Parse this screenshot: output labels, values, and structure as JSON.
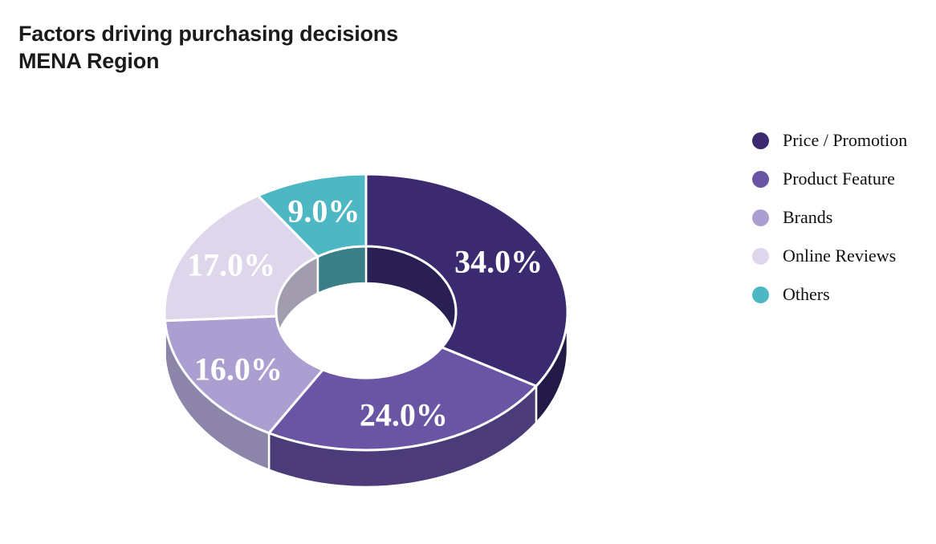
{
  "title": {
    "line1": "Factors driving purchasing decisions",
    "line2": "MENA Region"
  },
  "legend": {
    "items": [
      {
        "label": "Price / Promotion",
        "color": "#3B2A70"
      },
      {
        "label": "Product Feature",
        "color": "#6A54A4"
      },
      {
        "label": "Brands",
        "color": "#AB9FD2"
      },
      {
        "label": "Online Reviews",
        "color": "#DED7EC"
      },
      {
        "label": "Others",
        "color": "#4DB8C3"
      }
    ]
  },
  "chart_data": {
    "type": "pie",
    "subtype": "3d-donut",
    "title": "Factors driving purchasing decisions",
    "subtitle": "MENA Region",
    "categories": [
      "Price / Promotion",
      "Product Feature",
      "Brands",
      "Online Reviews",
      "Others"
    ],
    "values": [
      34.0,
      24.0,
      16.0,
      17.0,
      9.0
    ],
    "labels": [
      "34.0%",
      "24.0%",
      "16.0%",
      "17.0%",
      "9.0%"
    ],
    "colors": [
      "#3B2A70",
      "#6A54A4",
      "#AB9FD2",
      "#DED7EC",
      "#4DB8C3"
    ],
    "side_colors": [
      "#241A48",
      "#4B3B78",
      "#8D84A9",
      "#B3ADC5",
      "#3B8A94"
    ],
    "inner_wall_colors": [
      "#2A1F52",
      "#4B3B78",
      "#8D84A9",
      "#A29DAE",
      "#3A7E88"
    ],
    "label_color": "#FFFFFF",
    "stroke_color": "#FFFFFF",
    "background": "#FFFFFF",
    "start_angle_deg": 0,
    "direction": "clockwise",
    "donut_hole": true,
    "legend_position": "right",
    "grid": false
  }
}
